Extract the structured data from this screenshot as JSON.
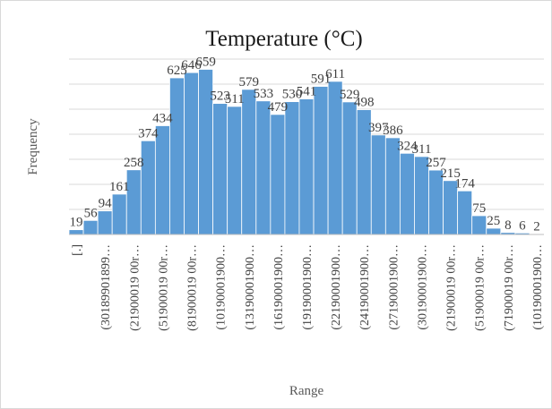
{
  "chart_data": {
    "type": "bar",
    "title": "Temperature (°C)",
    "xlabel": "Range",
    "ylabel": "Frequency",
    "ylim": [
      0,
      700
    ],
    "grid": true,
    "bar_color": "#5B9BD5",
    "categories": [
      "[.]",
      "",
      "(30189901899…",
      "",
      "(21900019 00r…",
      "",
      "(51900019 00r…",
      "",
      "(81900019 00r…",
      "",
      "(10190001900…",
      "",
      "(13190001900…",
      "",
      "(16190001900…",
      "",
      "(19190001900…",
      "",
      "(22190001900…",
      "",
      "(24190001900…",
      "",
      "(27190001900…",
      "",
      "(30190001900…",
      "",
      "(21900019 00r…",
      "",
      "(51900019 00r…",
      "",
      "(71900019 00r…",
      "",
      "(10190001900…"
    ],
    "values": [
      19,
      56,
      94,
      161,
      258,
      374,
      434,
      625,
      646,
      659,
      523,
      511,
      579,
      533,
      479,
      530,
      541,
      591,
      611,
      529,
      498,
      397,
      386,
      324,
      311,
      257,
      215,
      174,
      75,
      25,
      8,
      6,
      2
    ]
  }
}
